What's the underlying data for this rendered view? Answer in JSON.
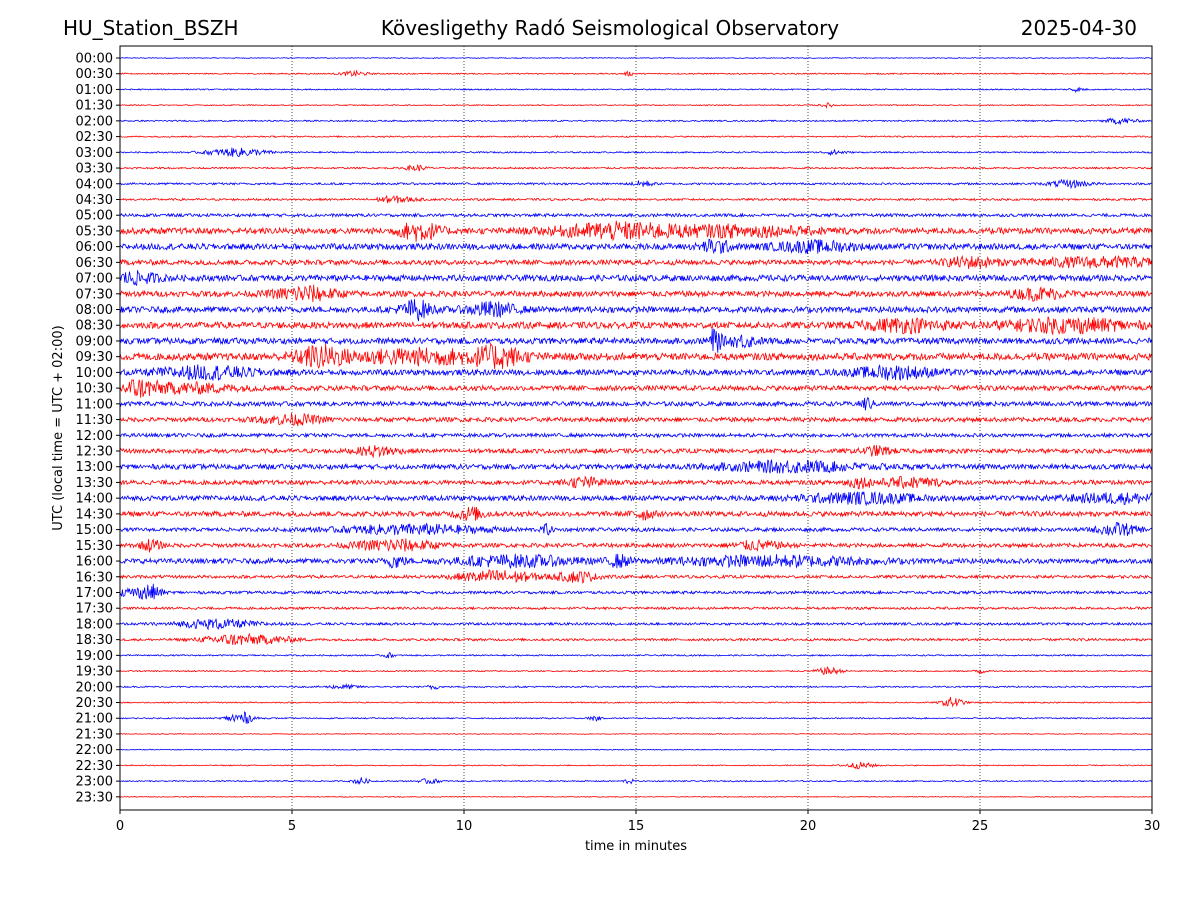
{
  "header": {
    "station": "HU_Station_BSZH",
    "observatory": "Kövesligethy Radó Seismological Observatory",
    "date": "2025-04-30"
  },
  "chart_data": {
    "type": "line",
    "subtype": "helicorder",
    "xlabel": "time in minutes",
    "ylabel": "UTC (local time = UTC + 02:00)",
    "xlim": [
      0,
      30
    ],
    "x_ticks": [
      "0",
      "5",
      "10",
      "15",
      "20",
      "25",
      "30"
    ],
    "x_gridlines": [
      5,
      10,
      15,
      20,
      25
    ],
    "grid_style": "dotted vertical",
    "trace_colors": [
      "#0000ff",
      "#ff0000"
    ],
    "rows": [
      {
        "label": "00:00",
        "color": "#0000ff",
        "amp": 0.04,
        "bursts": []
      },
      {
        "label": "00:30",
        "color": "#ff0000",
        "amp": 0.06,
        "bursts": [
          [
            6.8,
            0.25,
            0.25
          ],
          [
            14.8,
            0.1,
            0.2
          ]
        ]
      },
      {
        "label": "01:00",
        "color": "#0000ff",
        "amp": 0.06,
        "bursts": [
          [
            27.8,
            0.15,
            0.2
          ]
        ]
      },
      {
        "label": "01:30",
        "color": "#ff0000",
        "amp": 0.05,
        "bursts": [
          [
            20.6,
            0.15,
            0.2
          ]
        ]
      },
      {
        "label": "02:00",
        "color": "#0000ff",
        "amp": 0.07,
        "bursts": [
          [
            29.1,
            0.3,
            0.3
          ]
        ]
      },
      {
        "label": "02:30",
        "color": "#ff0000",
        "amp": 0.07,
        "bursts": []
      },
      {
        "label": "03:00",
        "color": "#0000ff",
        "amp": 0.07,
        "bursts": [
          [
            3.4,
            0.6,
            0.4
          ],
          [
            20.8,
            0.2,
            0.25
          ]
        ]
      },
      {
        "label": "03:30",
        "color": "#ff0000",
        "amp": 0.08,
        "bursts": [
          [
            8.6,
            0.2,
            0.3
          ]
        ]
      },
      {
        "label": "04:00",
        "color": "#0000ff",
        "amp": 0.1,
        "bursts": [
          [
            15.2,
            0.2,
            0.3
          ],
          [
            27.6,
            0.4,
            0.35
          ]
        ]
      },
      {
        "label": "04:30",
        "color": "#ff0000",
        "amp": 0.1,
        "bursts": [
          [
            8.0,
            0.4,
            0.3
          ]
        ]
      },
      {
        "label": "05:00",
        "color": "#0000ff",
        "amp": 0.15,
        "bursts": []
      },
      {
        "label": "05:30",
        "color": "#ff0000",
        "amp": 0.3,
        "bursts": [
          [
            8.7,
            0.4,
            0.9
          ],
          [
            14.4,
            1.2,
            0.7
          ],
          [
            18.0,
            1.5,
            0.45
          ]
        ]
      },
      {
        "label": "06:00",
        "color": "#0000ff",
        "amp": 0.3,
        "bursts": [
          [
            17.3,
            0.3,
            0.6
          ],
          [
            20.2,
            0.8,
            0.45
          ]
        ]
      },
      {
        "label": "06:30",
        "color": "#ff0000",
        "amp": 0.25,
        "bursts": [
          [
            24.7,
            0.5,
            0.45
          ],
          [
            28.5,
            1.5,
            0.4
          ]
        ]
      },
      {
        "label": "07:00",
        "color": "#0000ff",
        "amp": 0.3,
        "bursts": [
          [
            0.4,
            0.5,
            0.5
          ]
        ]
      },
      {
        "label": "07:30",
        "color": "#ff0000",
        "amp": 0.28,
        "bursts": [
          [
            5.4,
            0.6,
            0.7
          ],
          [
            26.7,
            0.5,
            0.5
          ]
        ]
      },
      {
        "label": "08:00",
        "color": "#0000ff",
        "amp": 0.3,
        "bursts": [
          [
            8.6,
            0.3,
            0.9
          ],
          [
            10.8,
            0.5,
            0.6
          ]
        ]
      },
      {
        "label": "08:30",
        "color": "#ff0000",
        "amp": 0.32,
        "bursts": [
          [
            22.8,
            0.8,
            0.55
          ],
          [
            27.5,
            1.3,
            0.6
          ]
        ]
      },
      {
        "label": "09:00",
        "color": "#0000ff",
        "amp": 0.3,
        "bursts": [
          [
            17.3,
            0.12,
            1.2
          ],
          [
            18.1,
            0.3,
            0.5
          ]
        ]
      },
      {
        "label": "09:30",
        "color": "#ff0000",
        "amp": 0.35,
        "bursts": [
          [
            5.8,
            0.5,
            0.9
          ],
          [
            8.7,
            1.5,
            0.65
          ],
          [
            11.0,
            0.5,
            0.8
          ]
        ]
      },
      {
        "label": "10:00",
        "color": "#0000ff",
        "amp": 0.28,
        "bursts": [
          [
            2.5,
            1.0,
            0.55
          ],
          [
            22.5,
            0.8,
            0.55
          ]
        ]
      },
      {
        "label": "10:30",
        "color": "#ff0000",
        "amp": 0.25,
        "bursts": [
          [
            0.5,
            0.4,
            0.75
          ],
          [
            2.0,
            1.0,
            0.4
          ]
        ]
      },
      {
        "label": "11:00",
        "color": "#0000ff",
        "amp": 0.22,
        "bursts": [
          [
            21.7,
            0.12,
            0.6
          ]
        ]
      },
      {
        "label": "11:30",
        "color": "#ff0000",
        "amp": 0.22,
        "bursts": [
          [
            5.0,
            0.6,
            0.45
          ]
        ]
      },
      {
        "label": "12:00",
        "color": "#0000ff",
        "amp": 0.18,
        "bursts": []
      },
      {
        "label": "12:30",
        "color": "#ff0000",
        "amp": 0.22,
        "bursts": [
          [
            7.5,
            0.4,
            0.45
          ],
          [
            22.0,
            0.3,
            0.4
          ]
        ]
      },
      {
        "label": "13:00",
        "color": "#0000ff",
        "amp": 0.25,
        "bursts": [
          [
            19.5,
            1.5,
            0.45
          ]
        ]
      },
      {
        "label": "13:30",
        "color": "#ff0000",
        "amp": 0.22,
        "bursts": [
          [
            13.5,
            0.4,
            0.45
          ],
          [
            21.5,
            0.3,
            0.4
          ],
          [
            23.0,
            0.6,
            0.45
          ]
        ]
      },
      {
        "label": "14:00",
        "color": "#0000ff",
        "amp": 0.25,
        "bursts": [
          [
            21.5,
            1.2,
            0.45
          ],
          [
            29.0,
            1.0,
            0.4
          ]
        ]
      },
      {
        "label": "14:30",
        "color": "#ff0000",
        "amp": 0.25,
        "bursts": [
          [
            10.2,
            0.3,
            0.55
          ],
          [
            15.2,
            0.2,
            0.5
          ]
        ]
      },
      {
        "label": "15:00",
        "color": "#0000ff",
        "amp": 0.18,
        "bursts": [
          [
            8.5,
            1.5,
            0.45
          ],
          [
            12.4,
            0.1,
            0.5
          ],
          [
            29.0,
            0.4,
            0.6
          ]
        ]
      },
      {
        "label": "15:30",
        "color": "#ff0000",
        "amp": 0.2,
        "bursts": [
          [
            0.9,
            0.2,
            0.55
          ],
          [
            8.0,
            0.8,
            0.55
          ],
          [
            18.5,
            0.5,
            0.4
          ]
        ]
      },
      {
        "label": "16:00",
        "color": "#0000ff",
        "amp": 0.25,
        "bursts": [
          [
            8.0,
            0.2,
            0.55
          ],
          [
            11.5,
            1.2,
            0.5
          ],
          [
            14.5,
            0.2,
            0.5
          ],
          [
            19.0,
            2.0,
            0.45
          ]
        ]
      },
      {
        "label": "16:30",
        "color": "#ff0000",
        "amp": 0.15,
        "bursts": [
          [
            11.0,
            0.8,
            0.6
          ],
          [
            13.3,
            0.4,
            0.5
          ]
        ]
      },
      {
        "label": "17:00",
        "color": "#0000ff",
        "amp": 0.14,
        "bursts": [
          [
            0.9,
            0.2,
            0.75
          ],
          [
            0.3,
            0.3,
            0.4
          ]
        ]
      },
      {
        "label": "17:30",
        "color": "#ff0000",
        "amp": 0.12,
        "bursts": []
      },
      {
        "label": "18:00",
        "color": "#0000ff",
        "amp": 0.12,
        "bursts": [
          [
            2.8,
            0.8,
            0.45
          ]
        ]
      },
      {
        "label": "18:30",
        "color": "#ff0000",
        "amp": 0.12,
        "bursts": [
          [
            3.3,
            0.6,
            0.5
          ],
          [
            4.5,
            0.5,
            0.25
          ]
        ]
      },
      {
        "label": "19:00",
        "color": "#0000ff",
        "amp": 0.07,
        "bursts": [
          [
            7.8,
            0.1,
            0.25
          ]
        ]
      },
      {
        "label": "19:30",
        "color": "#ff0000",
        "amp": 0.06,
        "bursts": [
          [
            20.6,
            0.25,
            0.35
          ],
          [
            25.0,
            0.1,
            0.3
          ]
        ]
      },
      {
        "label": "20:00",
        "color": "#0000ff",
        "amp": 0.07,
        "bursts": [
          [
            9.1,
            0.1,
            0.3
          ],
          [
            6.5,
            0.3,
            0.2
          ]
        ]
      },
      {
        "label": "20:30",
        "color": "#ff0000",
        "amp": 0.06,
        "bursts": [
          [
            24.2,
            0.2,
            0.55
          ]
        ]
      },
      {
        "label": "21:00",
        "color": "#0000ff",
        "amp": 0.06,
        "bursts": [
          [
            3.5,
            0.25,
            0.65
          ],
          [
            13.8,
            0.1,
            0.3
          ]
        ]
      },
      {
        "label": "21:30",
        "color": "#ff0000",
        "amp": 0.04,
        "bursts": []
      },
      {
        "label": "22:00",
        "color": "#0000ff",
        "amp": 0.04,
        "bursts": []
      },
      {
        "label": "22:30",
        "color": "#ff0000",
        "amp": 0.05,
        "bursts": [
          [
            21.5,
            0.3,
            0.3
          ]
        ]
      },
      {
        "label": "23:00",
        "color": "#0000ff",
        "amp": 0.06,
        "bursts": [
          [
            7.0,
            0.15,
            0.35
          ],
          [
            9.0,
            0.2,
            0.25
          ],
          [
            14.8,
            0.1,
            0.25
          ]
        ]
      },
      {
        "label": "23:30",
        "color": "#ff0000",
        "amp": 0.04,
        "bursts": []
      }
    ]
  }
}
